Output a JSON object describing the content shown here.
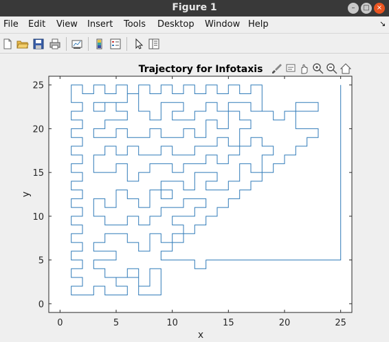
{
  "window": {
    "title": "Figure 1"
  },
  "menu": [
    "File",
    "Edit",
    "View",
    "Insert",
    "Tools",
    "Desktop",
    "Window",
    "Help"
  ],
  "toolbar": [
    "new-figure",
    "open-file",
    "save",
    "print",
    "link-plot",
    "insert-colorbar",
    "insert-legend",
    "edit-plot",
    "property-inspector"
  ],
  "axes_toolbar": [
    "brush",
    "data-tips",
    "pan",
    "zoom-in",
    "zoom-out",
    "restore-view"
  ],
  "chart_data": {
    "type": "line",
    "title": "Trajectory for Infotaxis",
    "xlabel": "x",
    "ylabel": "y",
    "xlim": [
      -1,
      26
    ],
    "ylim": [
      -1,
      26
    ],
    "xticks": [
      0,
      5,
      10,
      15,
      20,
      25
    ],
    "yticks": [
      0,
      5,
      10,
      15,
      20,
      25
    ],
    "xtick_labels": [
      "0",
      "5",
      "10",
      "15",
      "20",
      "25"
    ],
    "ytick_labels": [
      "0",
      "5",
      "10",
      "15",
      "20",
      "25"
    ],
    "grid": false,
    "series": [
      {
        "color": "#2f7ab8",
        "points": [
          [
            25,
            25
          ],
          [
            25,
            5
          ],
          [
            13,
            5
          ],
          [
            13,
            4
          ],
          [
            12,
            4
          ],
          [
            12,
            5
          ],
          [
            9,
            5
          ],
          [
            9,
            6
          ],
          [
            10,
            6
          ],
          [
            10,
            7
          ],
          [
            11,
            7
          ],
          [
            11,
            8
          ],
          [
            12,
            8
          ],
          [
            12,
            9
          ],
          [
            13,
            9
          ],
          [
            13,
            10
          ],
          [
            14,
            10
          ],
          [
            14,
            11
          ],
          [
            15,
            11
          ],
          [
            15,
            12
          ],
          [
            16,
            12
          ],
          [
            16,
            13
          ],
          [
            17,
            13
          ],
          [
            17,
            14
          ],
          [
            18,
            14
          ],
          [
            18,
            15
          ],
          [
            19,
            15
          ],
          [
            19,
            16
          ],
          [
            20,
            16
          ],
          [
            20,
            17
          ],
          [
            21,
            17
          ],
          [
            21,
            18
          ],
          [
            22,
            18
          ],
          [
            22,
            19
          ],
          [
            23,
            19
          ],
          [
            23,
            20
          ],
          [
            21,
            20
          ],
          [
            21,
            22
          ],
          [
            23,
            22
          ],
          [
            23,
            23
          ],
          [
            21,
            23
          ],
          [
            21,
            22
          ],
          [
            20,
            22
          ],
          [
            20,
            21
          ],
          [
            19,
            21
          ],
          [
            19,
            22
          ],
          [
            18,
            22
          ],
          [
            18,
            25
          ],
          [
            17,
            25
          ],
          [
            17,
            24
          ],
          [
            16,
            24
          ],
          [
            16,
            25
          ],
          [
            15,
            25
          ],
          [
            15,
            24
          ],
          [
            14,
            24
          ],
          [
            14,
            25
          ],
          [
            13,
            25
          ],
          [
            13,
            24
          ],
          [
            12,
            24
          ],
          [
            12,
            25
          ],
          [
            11,
            25
          ],
          [
            11,
            24
          ],
          [
            10,
            24
          ],
          [
            10,
            25
          ],
          [
            9,
            25
          ],
          [
            9,
            24
          ],
          [
            8,
            24
          ],
          [
            8,
            25
          ],
          [
            7,
            25
          ],
          [
            7,
            24
          ],
          [
            6,
            24
          ],
          [
            6,
            25
          ],
          [
            5,
            25
          ],
          [
            5,
            24
          ],
          [
            4,
            24
          ],
          [
            4,
            25
          ],
          [
            3,
            25
          ],
          [
            3,
            24
          ],
          [
            2,
            24
          ],
          [
            2,
            25
          ],
          [
            1,
            25
          ],
          [
            1,
            23
          ],
          [
            2,
            23
          ],
          [
            2,
            22
          ],
          [
            1,
            22
          ],
          [
            1,
            21
          ],
          [
            2,
            21
          ],
          [
            2,
            20
          ],
          [
            1,
            20
          ],
          [
            1,
            19
          ],
          [
            2,
            19
          ],
          [
            2,
            18
          ],
          [
            1,
            18
          ],
          [
            1,
            17
          ],
          [
            2,
            17
          ],
          [
            2,
            16
          ],
          [
            1,
            16
          ],
          [
            1,
            15
          ],
          [
            2,
            15
          ],
          [
            2,
            14
          ],
          [
            1,
            14
          ],
          [
            1,
            13
          ],
          [
            2,
            13
          ],
          [
            2,
            12
          ],
          [
            1,
            12
          ],
          [
            1,
            11
          ],
          [
            2,
            11
          ],
          [
            2,
            10
          ],
          [
            1,
            10
          ],
          [
            1,
            9
          ],
          [
            2,
            9
          ],
          [
            2,
            8
          ],
          [
            1,
            8
          ],
          [
            1,
            7
          ],
          [
            2,
            7
          ],
          [
            2,
            6
          ],
          [
            1,
            6
          ],
          [
            1,
            5
          ],
          [
            2,
            5
          ],
          [
            2,
            4
          ],
          [
            1,
            4
          ],
          [
            1,
            3
          ],
          [
            2,
            3
          ],
          [
            2,
            2
          ],
          [
            1,
            2
          ],
          [
            1,
            1
          ],
          [
            3,
            1
          ],
          [
            3,
            2
          ],
          [
            4,
            2
          ],
          [
            4,
            1
          ],
          [
            6,
            1
          ],
          [
            6,
            2
          ],
          [
            5,
            2
          ],
          [
            5,
            3
          ],
          [
            7,
            3
          ],
          [
            7,
            1
          ],
          [
            9,
            1
          ],
          [
            9,
            4
          ],
          [
            8,
            4
          ],
          [
            8,
            2
          ],
          [
            7,
            2
          ],
          [
            7,
            4
          ],
          [
            6,
            4
          ],
          [
            6,
            3
          ],
          [
            4,
            3
          ],
          [
            4,
            4
          ],
          [
            3,
            4
          ],
          [
            3,
            5
          ],
          [
            5,
            5
          ],
          [
            5,
            6
          ],
          [
            3,
            6
          ],
          [
            3,
            7
          ],
          [
            4,
            7
          ],
          [
            4,
            8
          ],
          [
            6,
            8
          ],
          [
            6,
            7
          ],
          [
            7,
            7
          ],
          [
            7,
            6
          ],
          [
            8,
            6
          ],
          [
            8,
            8
          ],
          [
            9,
            8
          ],
          [
            9,
            7
          ],
          [
            10,
            7
          ],
          [
            10,
            8
          ],
          [
            11,
            8
          ],
          [
            11,
            9
          ],
          [
            10,
            9
          ],
          [
            10,
            10
          ],
          [
            12,
            10
          ],
          [
            12,
            11
          ],
          [
            13,
            11
          ],
          [
            13,
            12
          ],
          [
            11,
            12
          ],
          [
            11,
            11
          ],
          [
            9,
            11
          ],
          [
            9,
            10
          ],
          [
            8,
            10
          ],
          [
            8,
            9
          ],
          [
            7,
            9
          ],
          [
            7,
            10
          ],
          [
            6,
            10
          ],
          [
            6,
            9
          ],
          [
            4,
            9
          ],
          [
            4,
            10
          ],
          [
            3,
            10
          ],
          [
            3,
            12
          ],
          [
            4,
            12
          ],
          [
            4,
            11
          ],
          [
            5,
            11
          ],
          [
            5,
            13
          ],
          [
            6,
            13
          ],
          [
            6,
            12
          ],
          [
            7,
            12
          ],
          [
            7,
            11
          ],
          [
            8,
            11
          ],
          [
            8,
            13
          ],
          [
            10,
            13
          ],
          [
            10,
            12
          ],
          [
            9,
            12
          ],
          [
            9,
            14
          ],
          [
            11,
            14
          ],
          [
            11,
            13
          ],
          [
            12,
            13
          ],
          [
            12,
            15
          ],
          [
            14,
            15
          ],
          [
            14,
            14
          ],
          [
            13,
            14
          ],
          [
            13,
            13
          ],
          [
            15,
            13
          ],
          [
            15,
            14
          ],
          [
            16,
            14
          ],
          [
            16,
            16
          ],
          [
            17,
            16
          ],
          [
            17,
            15
          ],
          [
            18,
            15
          ],
          [
            18,
            17
          ],
          [
            19,
            17
          ],
          [
            19,
            18
          ],
          [
            18,
            18
          ],
          [
            18,
            19
          ],
          [
            17,
            19
          ],
          [
            17,
            18
          ],
          [
            16,
            18
          ],
          [
            16,
            17
          ],
          [
            15,
            17
          ],
          [
            15,
            16
          ],
          [
            14,
            16
          ],
          [
            14,
            17
          ],
          [
            13,
            17
          ],
          [
            13,
            16
          ],
          [
            11,
            16
          ],
          [
            11,
            15
          ],
          [
            10,
            15
          ],
          [
            10,
            16
          ],
          [
            8,
            16
          ],
          [
            8,
            15
          ],
          [
            7,
            15
          ],
          [
            7,
            14
          ],
          [
            6,
            14
          ],
          [
            6,
            16
          ],
          [
            5,
            16
          ],
          [
            5,
            15
          ],
          [
            3,
            15
          ],
          [
            3,
            17
          ],
          [
            4,
            17
          ],
          [
            4,
            18
          ],
          [
            5,
            18
          ],
          [
            5,
            17
          ],
          [
            6,
            17
          ],
          [
            6,
            18
          ],
          [
            7,
            18
          ],
          [
            7,
            17
          ],
          [
            9,
            17
          ],
          [
            9,
            18
          ],
          [
            10,
            18
          ],
          [
            10,
            17
          ],
          [
            12,
            17
          ],
          [
            12,
            18
          ],
          [
            14,
            18
          ],
          [
            14,
            19
          ],
          [
            15,
            19
          ],
          [
            15,
            18
          ],
          [
            16,
            18
          ],
          [
            16,
            20
          ],
          [
            17,
            20
          ],
          [
            17,
            21
          ],
          [
            16,
            21
          ],
          [
            16,
            22
          ],
          [
            15,
            22
          ],
          [
            15,
            20
          ],
          [
            14,
            20
          ],
          [
            14,
            21
          ],
          [
            13,
            21
          ],
          [
            13,
            19
          ],
          [
            12,
            19
          ],
          [
            12,
            20
          ],
          [
            11,
            20
          ],
          [
            11,
            19
          ],
          [
            9,
            19
          ],
          [
            9,
            20
          ],
          [
            8,
            20
          ],
          [
            8,
            19
          ],
          [
            6,
            19
          ],
          [
            6,
            20
          ],
          [
            5,
            20
          ],
          [
            5,
            19
          ],
          [
            3,
            19
          ],
          [
            3,
            20
          ],
          [
            4,
            20
          ],
          [
            4,
            21
          ],
          [
            6,
            21
          ],
          [
            6,
            22
          ],
          [
            5,
            22
          ],
          [
            5,
            23
          ],
          [
            4,
            23
          ],
          [
            4,
            22
          ],
          [
            3,
            22
          ],
          [
            3,
            23
          ],
          [
            6,
            23
          ],
          [
            6,
            24
          ],
          [
            7,
            24
          ],
          [
            7,
            22
          ],
          [
            8,
            22
          ],
          [
            8,
            21
          ],
          [
            9,
            21
          ],
          [
            9,
            23
          ],
          [
            11,
            23
          ],
          [
            11,
            22
          ],
          [
            10,
            22
          ],
          [
            10,
            21
          ],
          [
            12,
            21
          ],
          [
            12,
            22
          ],
          [
            13,
            22
          ],
          [
            13,
            23
          ],
          [
            14,
            23
          ],
          [
            14,
            22
          ],
          [
            15,
            22
          ],
          [
            15,
            23
          ],
          [
            17,
            23
          ],
          [
            17,
            22
          ],
          [
            18,
            22
          ]
        ]
      }
    ]
  }
}
